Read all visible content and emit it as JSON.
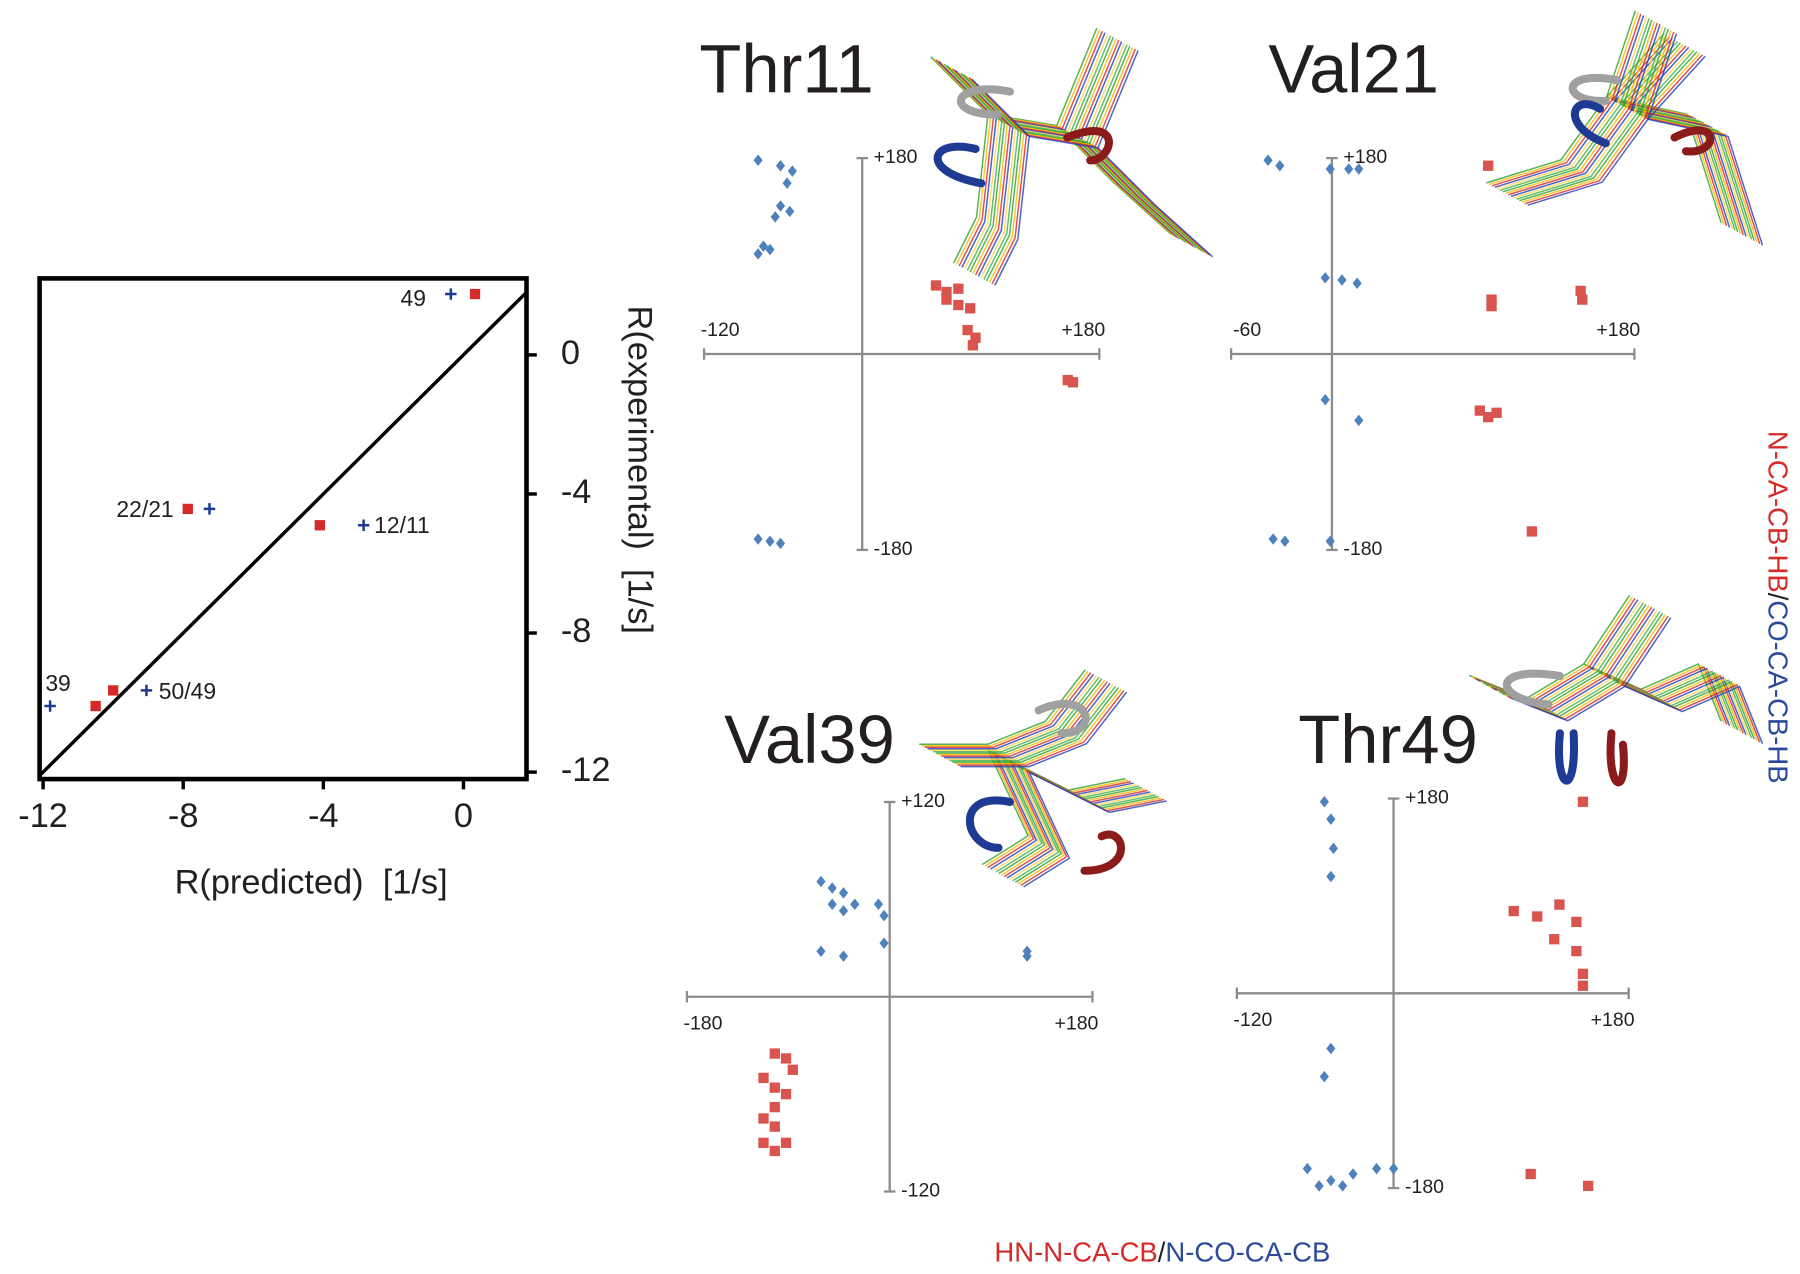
{
  "chart_data": [
    {
      "type": "scatter",
      "xlabel": "R(predicted)  [1/s]",
      "ylabel": "R(experimental)  [1/s]",
      "xlim": [
        -12.1,
        1.8
      ],
      "ylim": [
        -12.2,
        2.2
      ],
      "xticks": [
        -12,
        -8,
        -4,
        0
      ],
      "yticks": [
        -12,
        -8,
        -4,
        0
      ],
      "series": [
        {
          "color": "#d42a2a",
          "marker": "square",
          "x": [
            0.33,
            -7.87,
            -4.1,
            -10.0,
            -10.5
          ],
          "values": [
            1.75,
            -4.43,
            -4.9,
            -9.65,
            -10.1
          ]
        },
        {
          "color": "#1f3a93",
          "marker": "plus",
          "x": [
            -0.36,
            -7.25,
            -2.85,
            -9.05,
            -11.8
          ],
          "values": [
            1.75,
            -4.43,
            -4.9,
            -9.65,
            -10.1
          ]
        }
      ],
      "annotations": [
        "49",
        "22/21",
        "12/11",
        "39",
        "50/49"
      ]
    },
    {
      "type": "scatter",
      "title": "Thr11",
      "xlim": [
        -120,
        180
      ],
      "ylim": [
        -180,
        180
      ],
      "xticks": [
        -120,
        {
          "value": 180,
          "label": "+180"
        }
      ],
      "yticks": [
        {
          "value": 180,
          "label": "+180"
        },
        -180
      ],
      "series": [
        {
          "color": "#4f81bd",
          "marker": "diamond",
          "x": [
            -79,
            -62,
            -53,
            -57,
            -62,
            -55,
            -66,
            -75,
            -79,
            -70,
            -79,
            -70,
            -62
          ],
          "values": [
            178,
            173,
            168,
            157,
            136,
            131,
            126,
            99,
            92,
            96,
            -170,
            -172,
            -174
          ]
        },
        {
          "color": "#d9534f",
          "marker": "square",
          "x": [
            56,
            64,
            73,
            64,
            73,
            82,
            80,
            86,
            84,
            160,
            156
          ],
          "values": [
            63,
            57,
            60,
            50,
            45,
            42,
            22,
            15,
            8,
            -26,
            -24
          ]
        }
      ]
    },
    {
      "type": "scatter",
      "title": "Val21",
      "xlim": [
        -60,
        180
      ],
      "ylim": [
        -180,
        180
      ],
      "xticks": [
        -60,
        {
          "value": 180,
          "label": "+180"
        }
      ],
      "yticks": [
        {
          "value": 180,
          "label": "+180"
        },
        -180
      ],
      "series": [
        {
          "color": "#4f81bd",
          "marker": "diamond",
          "x": [
            -38,
            -31,
            -1,
            10,
            16,
            -4,
            6,
            15,
            -4,
            16,
            -35,
            -28,
            -1
          ],
          "values": [
            178,
            173,
            170,
            170,
            170,
            70,
            68,
            65,
            -42,
            -61,
            -170,
            -172,
            -172
          ]
        },
        {
          "color": "#d9534f",
          "marker": "square",
          "x": [
            93,
            95,
            95,
            148,
            149,
            88,
            93,
            98,
            119
          ],
          "values": [
            173,
            50,
            44,
            58,
            50,
            -52,
            -58,
            -54,
            -163
          ]
        }
      ]
    },
    {
      "type": "scatter",
      "title": "Val39",
      "xlim": [
        -180,
        180
      ],
      "ylim": [
        -120,
        120
      ],
      "xticks": [
        -180,
        {
          "value": 180,
          "label": "+180"
        }
      ],
      "yticks": [
        {
          "value": 120,
          "label": "+120"
        },
        -120
      ],
      "series": [
        {
          "color": "#4f81bd",
          "marker": "diamond",
          "x": [
            -61,
            -51,
            -41,
            -51,
            -41,
            -31,
            -10,
            -5,
            -5,
            -41,
            -61,
            122,
            122
          ],
          "values": [
            71,
            67,
            64,
            57,
            53,
            57,
            57,
            50,
            33,
            25,
            28,
            28,
            25
          ]
        },
        {
          "color": "#d9534f",
          "marker": "square",
          "x": [
            -102,
            -92,
            -86,
            -112,
            -102,
            -92,
            -102,
            -112,
            -102,
            -112,
            -102,
            -92
          ],
          "values": [
            -35,
            -38,
            -45,
            -50,
            -56,
            -60,
            -68,
            -75,
            -80,
            -90,
            -95,
            -90
          ]
        }
      ]
    },
    {
      "type": "scatter",
      "title": "Thr49",
      "xlim": [
        -120,
        180
      ],
      "ylim": [
        -180,
        180
      ],
      "xticks": [
        -120,
        {
          "value": 180,
          "label": "+180"
        }
      ],
      "yticks": [
        {
          "value": 180,
          "label": "+180"
        },
        -180
      ],
      "series": [
        {
          "color": "#4f81bd",
          "marker": "diamond",
          "x": [
            -53,
            -48,
            -46,
            -48,
            -48,
            -53,
            -66,
            -48,
            -31,
            -13,
            0,
            -57,
            -39
          ],
          "values": [
            177,
            161,
            134,
            108,
            -51,
            -77,
            -162,
            -173,
            -167,
            -162,
            -162,
            -178,
            -178
          ]
        },
        {
          "color": "#d9534f",
          "marker": "square",
          "x": [
            92,
            110,
            127,
            140,
            123,
            140,
            145,
            145,
            145,
            105,
            149
          ],
          "values": [
            76,
            71,
            82,
            66,
            50,
            39,
            18,
            7,
            177,
            -167,
            -178
          ]
        }
      ]
    }
  ],
  "x_label": [
    {
      "text": "HN-N-CA-CB",
      "color": "#d42a2a"
    },
    {
      "text": "/",
      "color": "#231f20"
    },
    {
      "text": "N-CO-CA-CB",
      "color": "#2b4a9a"
    }
  ],
  "side_label": [
    {
      "text": "N-CA-CB-HB",
      "color": "#d42a2a"
    },
    {
      "text": "/",
      "color": "#231f20"
    },
    {
      "text": "CO-CA-CB-HB",
      "color": "#2b4a9a"
    }
  ]
}
